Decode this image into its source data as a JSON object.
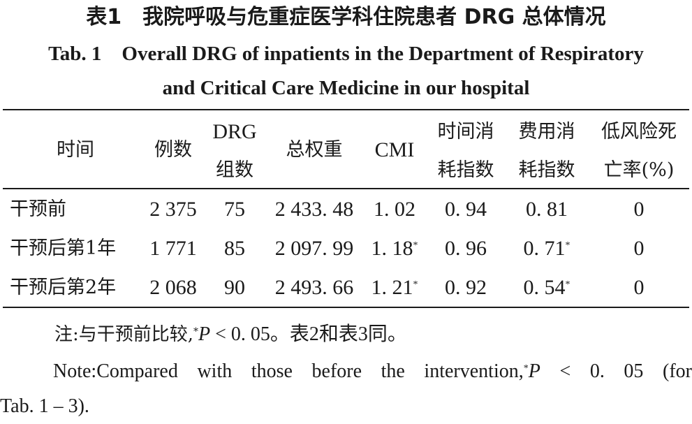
{
  "title_cn": "表1　我院呼吸与危重症医学科住院患者 DRG 总体情况",
  "title_en_line1": "Tab. 1　Overall DRG of inpatients in the Department of Respiratory",
  "title_en_line2": "and Critical Care Medicine in our hospital",
  "header": {
    "time": "时间",
    "cases": "例数",
    "drg_line1": "DRG",
    "drg_line2": "组数",
    "total_weight": "总权重",
    "cmi": "CMI",
    "time_idx_line1": "时间消",
    "time_idx_line2": "耗指数",
    "cost_idx_line1": "费用消",
    "cost_idx_line2": "耗指数",
    "mortality_line1": "低风险死",
    "mortality_line2": "亡率(%)"
  },
  "rows": [
    {
      "time": "干预前",
      "cases": "2 375",
      "drg": "75",
      "weight": "2 433. 48",
      "cmi": "1. 02",
      "cmi_mark": "",
      "time_idx": "0. 94",
      "cost_idx": "0. 81",
      "cost_mark": "",
      "mortality": "0"
    },
    {
      "time": "干预后第1年",
      "cases": "1 771",
      "drg": "85",
      "weight": "2 097. 99",
      "cmi": "1. 18",
      "cmi_mark": "*",
      "time_idx": "0. 96",
      "cost_idx": "0. 71",
      "cost_mark": "*",
      "mortality": "0"
    },
    {
      "time": "干预后第2年",
      "cases": "2 068",
      "drg": "90",
      "weight": "2 493. 66",
      "cmi": "1. 21",
      "cmi_mark": "*",
      "time_idx": "0. 92",
      "cost_idx": "0. 54",
      "cost_mark": "*",
      "mortality": "0"
    }
  ],
  "note_cn": {
    "prefix": "注:与干预前比较,",
    "mark": "*",
    "p": "P",
    "rest": " < 0. 05。表2和表3同。"
  },
  "note_en": {
    "prefix": "Note:Compared with those before the intervention,",
    "mark": "*",
    "p": "P",
    "rest": " < 0. 05 (for",
    "line2": "Tab. 1 – 3)."
  }
}
